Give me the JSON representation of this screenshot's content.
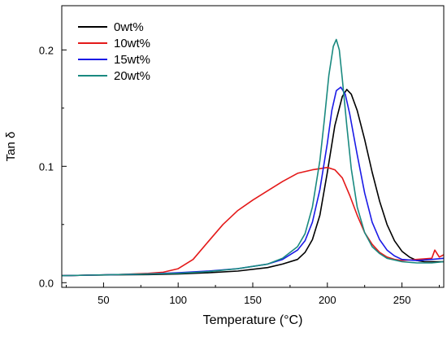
{
  "chart_data": {
    "type": "line",
    "title": "",
    "xlabel": "Temperature (°C)",
    "ylabel": "Tan δ",
    "xlim": [
      22,
      278
    ],
    "ylim": [
      -0.004,
      0.238
    ],
    "xticks": [
      50,
      100,
      150,
      200,
      250
    ],
    "xtick_labels": [
      "50",
      "100",
      "150",
      "200",
      "250"
    ],
    "yticks": [
      0.0,
      0.1,
      0.2
    ],
    "ytick_labels": [
      "0.0",
      "0.1",
      "0.2"
    ],
    "grid": false,
    "legend_position": "top-left",
    "series": [
      {
        "name": "0wt%",
        "color": "#000000",
        "x": [
          22,
          40,
          60,
          80,
          100,
          120,
          140,
          160,
          170,
          180,
          185,
          190,
          195,
          200,
          205,
          210,
          213,
          216,
          220,
          225,
          230,
          235,
          240,
          245,
          250,
          255,
          260,
          265,
          270,
          275,
          278
        ],
        "y": [
          0.006,
          0.0065,
          0.0068,
          0.007,
          0.0075,
          0.0085,
          0.01,
          0.013,
          0.016,
          0.02,
          0.026,
          0.037,
          0.058,
          0.095,
          0.135,
          0.16,
          0.166,
          0.162,
          0.148,
          0.123,
          0.095,
          0.07,
          0.05,
          0.036,
          0.027,
          0.022,
          0.019,
          0.018,
          0.018,
          0.018,
          0.018
        ]
      },
      {
        "name": "10wt%",
        "color": "#e41a1a",
        "x": [
          22,
          40,
          60,
          80,
          90,
          100,
          110,
          120,
          130,
          140,
          150,
          160,
          170,
          180,
          190,
          195,
          200,
          205,
          210,
          215,
          220,
          225,
          230,
          235,
          240,
          245,
          250,
          260,
          270,
          272,
          275,
          278
        ],
        "y": [
          0.006,
          0.0065,
          0.007,
          0.008,
          0.009,
          0.012,
          0.02,
          0.035,
          0.05,
          0.062,
          0.071,
          0.079,
          0.087,
          0.094,
          0.097,
          0.098,
          0.099,
          0.097,
          0.09,
          0.075,
          0.058,
          0.043,
          0.033,
          0.026,
          0.022,
          0.02,
          0.019,
          0.02,
          0.021,
          0.028,
          0.022,
          0.024
        ]
      },
      {
        "name": "15wt%",
        "color": "#1a1ae6",
        "x": [
          22,
          40,
          60,
          80,
          100,
          120,
          140,
          160,
          170,
          180,
          185,
          190,
          195,
          200,
          203,
          206,
          209,
          212,
          215,
          220,
          225,
          230,
          235,
          240,
          245,
          250,
          260,
          270,
          278
        ],
        "y": [
          0.006,
          0.0065,
          0.007,
          0.0075,
          0.0085,
          0.01,
          0.012,
          0.016,
          0.02,
          0.028,
          0.036,
          0.052,
          0.08,
          0.12,
          0.148,
          0.165,
          0.168,
          0.162,
          0.145,
          0.11,
          0.077,
          0.052,
          0.037,
          0.028,
          0.023,
          0.02,
          0.019,
          0.02,
          0.021
        ]
      },
      {
        "name": "20wt%",
        "color": "#1a8a80",
        "x": [
          22,
          40,
          60,
          80,
          100,
          120,
          140,
          160,
          170,
          180,
          185,
          190,
          195,
          198,
          201,
          204,
          206,
          208,
          210,
          213,
          216,
          220,
          225,
          230,
          235,
          240,
          250,
          260,
          270,
          278
        ],
        "y": [
          0.006,
          0.0065,
          0.007,
          0.0075,
          0.008,
          0.0095,
          0.012,
          0.016,
          0.021,
          0.031,
          0.042,
          0.065,
          0.105,
          0.14,
          0.178,
          0.203,
          0.209,
          0.2,
          0.175,
          0.135,
          0.098,
          0.065,
          0.043,
          0.031,
          0.025,
          0.021,
          0.018,
          0.017,
          0.017,
          0.018
        ]
      }
    ]
  }
}
